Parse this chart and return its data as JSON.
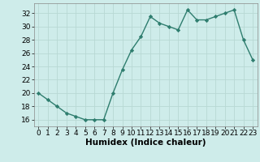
{
  "x": [
    0,
    1,
    2,
    3,
    4,
    5,
    6,
    7,
    8,
    9,
    10,
    11,
    12,
    13,
    14,
    15,
    16,
    17,
    18,
    19,
    20,
    21,
    22,
    23
  ],
  "y": [
    20,
    19,
    18,
    17,
    16.5,
    16,
    16,
    16,
    20,
    23.5,
    26.5,
    28.5,
    31.5,
    30.5,
    30,
    29.5,
    32.5,
    31,
    31,
    31.5,
    32,
    32.5,
    28,
    25
  ],
  "line_color": "#2e7d6e",
  "marker": "D",
  "marker_size": 2.2,
  "bg_color": "#ceecea",
  "grid_color": "#b8d8d4",
  "xlabel": "Humidex (Indice chaleur)",
  "ylim": [
    15,
    33.5
  ],
  "xlim": [
    -0.5,
    23.5
  ],
  "yticks": [
    16,
    18,
    20,
    22,
    24,
    26,
    28,
    30,
    32
  ],
  "xticks": [
    0,
    1,
    2,
    3,
    4,
    5,
    6,
    7,
    8,
    9,
    10,
    11,
    12,
    13,
    14,
    15,
    16,
    17,
    18,
    19,
    20,
    21,
    22,
    23
  ],
  "xlabel_fontsize": 7.5,
  "tick_fontsize": 6.5,
  "line_width": 1.0
}
